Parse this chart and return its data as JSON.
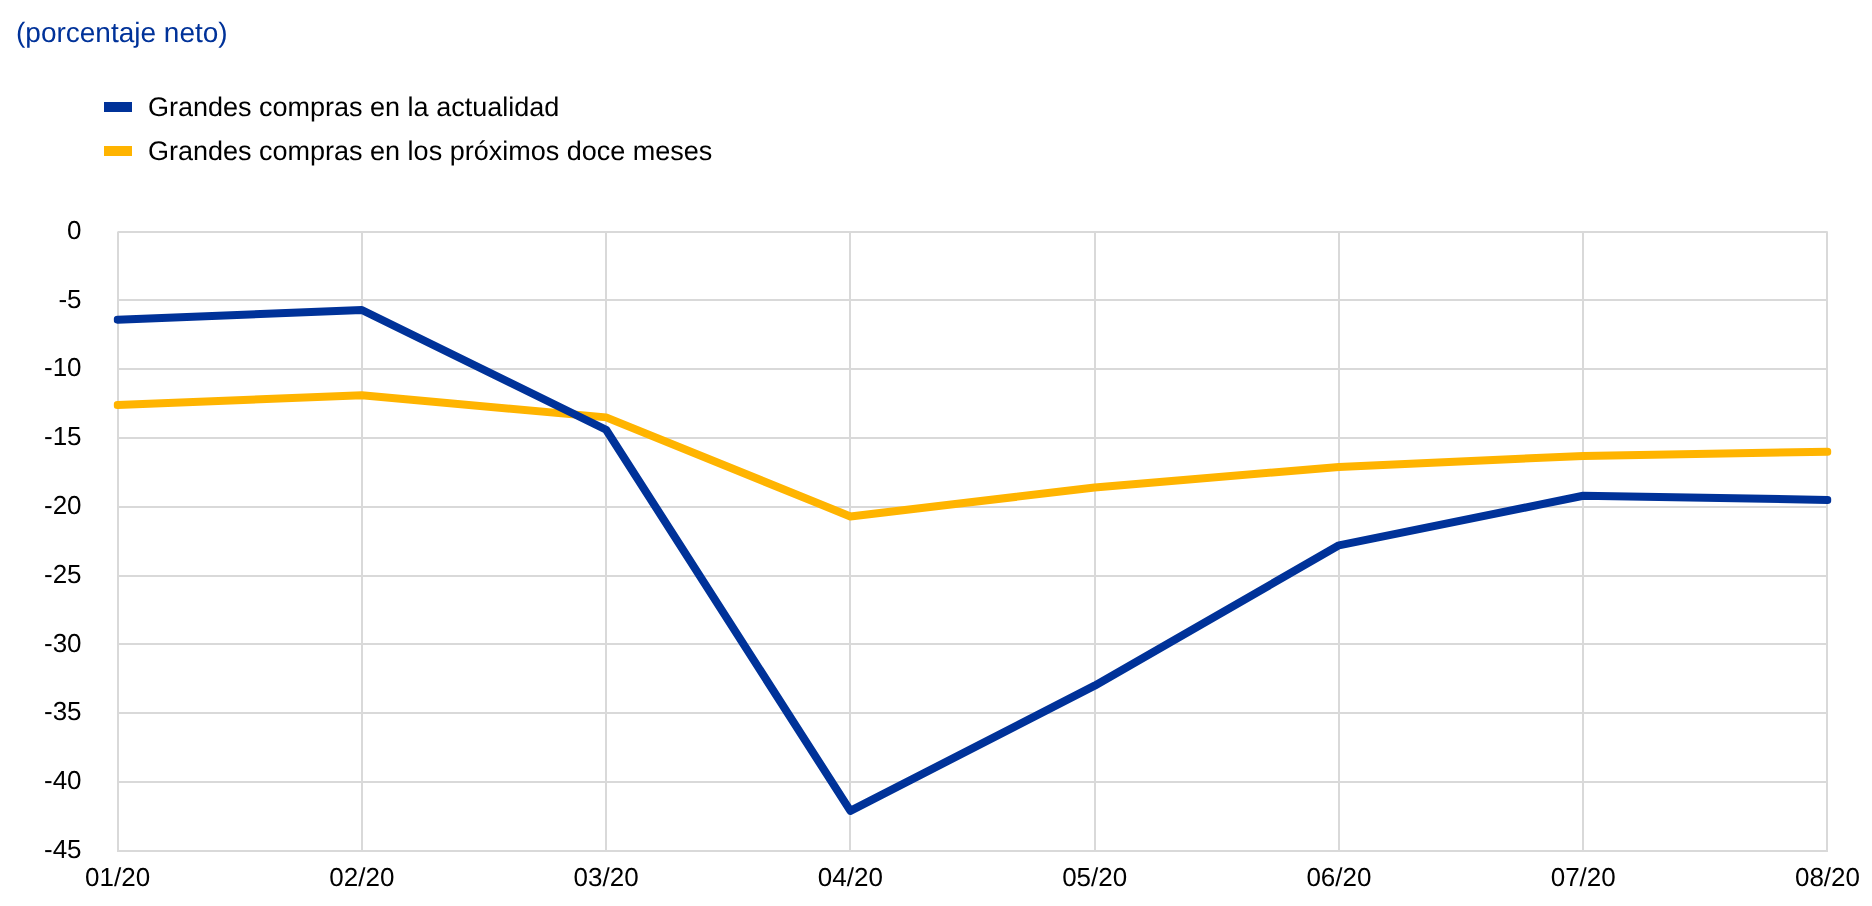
{
  "chart_data": {
    "type": "line",
    "annotations": [
      "(porcentaje neto)"
    ],
    "categories": [
      "01/20",
      "02/20",
      "03/20",
      "04/20",
      "05/20",
      "06/20",
      "07/20",
      "08/20"
    ],
    "series": [
      {
        "name": "Grandes compras en la actualidad",
        "color": "#003299",
        "values": [
          -6.4,
          -5.7,
          -14.4,
          -42.1,
          -33.0,
          -22.8,
          -19.2,
          -19.5
        ]
      },
      {
        "name": "Grandes compras en los próximos doce meses",
        "color": "#ffb400",
        "values": [
          -12.6,
          -11.9,
          -13.5,
          -20.7,
          -18.6,
          -17.1,
          -16.3,
          -16.0
        ]
      }
    ],
    "ylim": [
      -45,
      0
    ],
    "yticks": [
      0,
      -5,
      -10,
      -15,
      -20,
      -25,
      -30,
      -35,
      -40,
      -45
    ],
    "grid": true,
    "legend": "top left",
    "marker": "none",
    "line_style": "solid"
  }
}
